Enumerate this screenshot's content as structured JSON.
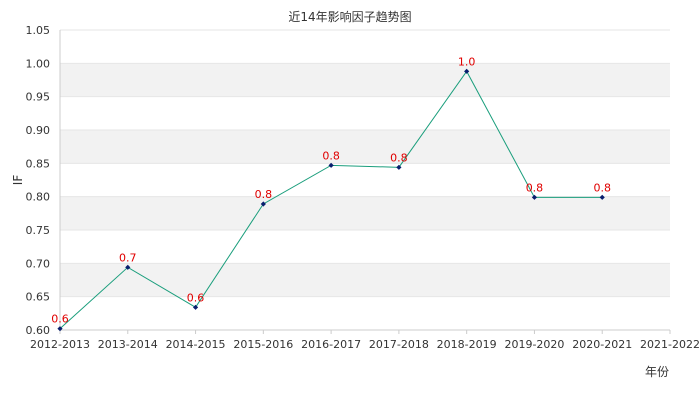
{
  "chart_data": {
    "type": "line",
    "title": "近14年影响因子趋势图",
    "xlabel": "年份",
    "ylabel": "IF",
    "categories": [
      "2012-2013",
      "2013-2014",
      "2014-2015",
      "2015-2016",
      "2016-2017",
      "2017-2018",
      "2018-2019",
      "2019-2020",
      "2020-2021",
      "2021-2022"
    ],
    "series": [
      {
        "values": [
          0.602,
          0.694,
          0.634,
          0.789,
          0.847,
          0.844,
          0.988,
          0.799,
          0.799,
          null
        ],
        "labels": [
          "0.6",
          "0.7",
          "0.6",
          "0.8",
          "0.8",
          "0.8",
          "1.0",
          "0.8",
          "0.8",
          null
        ]
      }
    ],
    "ylim": [
      0.6,
      1.05
    ],
    "yticks": [
      "0.60",
      "0.65",
      "0.70",
      "0.75",
      "0.80",
      "0.85",
      "0.90",
      "0.95",
      "1.00",
      "1.05"
    ],
    "grid": "horizontal bands",
    "colors": {
      "line": "#1a9e7c",
      "marker": "#0a1f6e",
      "label": "#e00000",
      "band": "#f2f2f2",
      "grid": "#e6e6e6",
      "axis": "#cccccc"
    }
  }
}
